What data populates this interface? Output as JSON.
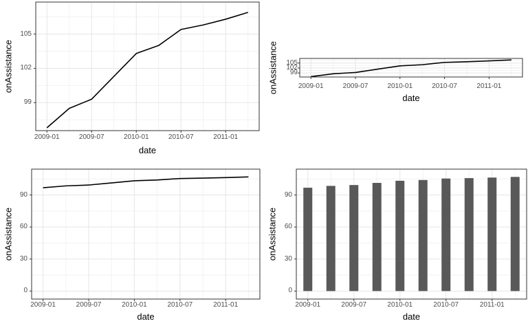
{
  "colors": {
    "background": "#ffffff",
    "line": "#000000",
    "bar": "#595959",
    "grid_major": "#e5e5e5",
    "grid_minor": "#f2f2f2",
    "panel_border": "#333333",
    "tick_mark": "#333333",
    "tick_text": "#4d4d4d",
    "title_text": "#000000"
  },
  "chart_data": [
    {
      "id": "top-left",
      "type": "line",
      "title": "",
      "xlabel": "date",
      "ylabel": "onAssistance",
      "x": [
        "2009-01",
        "2009-04",
        "2009-07",
        "2009-10",
        "2010-01",
        "2010-04",
        "2010-07",
        "2010-10",
        "2011-01",
        "2011-04"
      ],
      "values": [
        96.8,
        98.5,
        99.3,
        101.3,
        103.3,
        104.0,
        105.4,
        105.8,
        106.3,
        106.9
      ],
      "x_tick_labels": [
        "2009-01",
        "2009-07",
        "2010-01",
        "2010-07",
        "2011-01"
      ],
      "y_ticks": [
        99,
        102,
        105
      ],
      "y_minor": [
        97.5,
        100.5,
        103.5,
        106.5
      ],
      "ylim": [
        96.55,
        107.8
      ],
      "grid": true,
      "legend": "none"
    },
    {
      "id": "top-right",
      "type": "line",
      "title": "",
      "xlabel": "date",
      "ylabel": "onAssistance",
      "x": [
        "2009-01",
        "2009-04",
        "2009-07",
        "2009-10",
        "2010-01",
        "2010-04",
        "2010-07",
        "2010-10",
        "2011-01",
        "2011-04"
      ],
      "values": [
        96.8,
        98.5,
        99.3,
        101.3,
        103.3,
        104.0,
        105.4,
        105.8,
        106.3,
        106.9
      ],
      "x_tick_labels": [
        "2009-01",
        "2009-07",
        "2010-01",
        "2010-07",
        "2011-01"
      ],
      "y_ticks": [
        99,
        102,
        105
      ],
      "y_minor": [
        97.5,
        100.5,
        103.5,
        106.5
      ],
      "ylim": [
        96.55,
        107.8
      ],
      "grid": true,
      "legend": "none"
    },
    {
      "id": "bottom-left",
      "type": "line",
      "title": "",
      "xlabel": "date",
      "ylabel": "onAssistance",
      "x": [
        "2009-01",
        "2009-04",
        "2009-07",
        "2009-10",
        "2010-01",
        "2010-04",
        "2010-07",
        "2010-10",
        "2011-01",
        "2011-04"
      ],
      "values": [
        96.8,
        98.5,
        99.3,
        101.3,
        103.3,
        104.0,
        105.4,
        105.8,
        106.3,
        106.9
      ],
      "x_tick_labels": [
        "2009-01",
        "2009-07",
        "2010-01",
        "2010-07",
        "2011-01"
      ],
      "y_ticks": [
        0,
        30,
        60,
        90
      ],
      "y_minor": [
        15,
        45,
        75,
        105
      ],
      "ylim": [
        -7.5,
        114.2
      ],
      "grid": true,
      "legend": "none"
    },
    {
      "id": "bottom-right",
      "type": "bar",
      "title": "",
      "xlabel": "date",
      "ylabel": "onAssistance",
      "x": [
        "2009-01",
        "2009-04",
        "2009-07",
        "2009-10",
        "2010-01",
        "2010-04",
        "2010-07",
        "2010-10",
        "2011-01",
        "2011-04"
      ],
      "values": [
        96.8,
        98.5,
        99.3,
        101.3,
        103.3,
        104.0,
        105.4,
        105.8,
        106.3,
        106.9
      ],
      "x_tick_labels": [
        "2009-01",
        "2009-07",
        "2010-01",
        "2010-07",
        "2011-01"
      ],
      "y_ticks": [
        0,
        30,
        60,
        90
      ],
      "y_minor": [
        15,
        45,
        75,
        105
      ],
      "ylim": [
        -7.5,
        114.2
      ],
      "grid": true,
      "legend": "none"
    }
  ]
}
